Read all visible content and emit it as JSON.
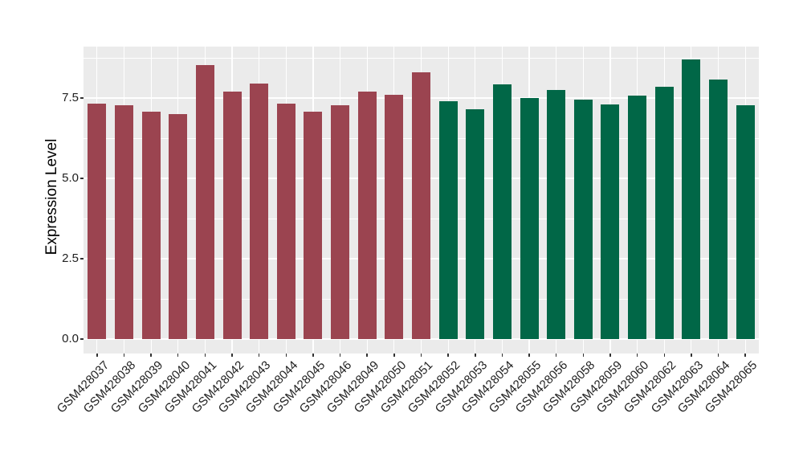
{
  "figure": {
    "background": "#FFFFFF",
    "panel_background": "#EBEBEB",
    "gridline_color": "#FFFFFF",
    "axis_text_color": "#212121",
    "tick_mark_color": "#333333"
  },
  "chart_data": {
    "type": "bar",
    "title": "",
    "xlabel": "",
    "ylabel": "Expression Level",
    "ylim": [
      0,
      9.1
    ],
    "yticks": [
      0.0,
      2.5,
      5.0,
      7.5
    ],
    "ytick_labels": [
      "0.0",
      "2.5",
      "5.0",
      "7.5"
    ],
    "yticks_minor": [
      1.25,
      3.75,
      6.25,
      8.75
    ],
    "grid": true,
    "legend": false,
    "categories": [
      "GSM428037",
      "GSM428038",
      "GSM428039",
      "GSM428040",
      "GSM428041",
      "GSM428042",
      "GSM428043",
      "GSM428044",
      "GSM428045",
      "GSM428046",
      "GSM428049",
      "GSM428050",
      "GSM428051",
      "GSM428052",
      "GSM428053",
      "GSM428054",
      "GSM428055",
      "GSM428056",
      "GSM428058",
      "GSM428059",
      "GSM428060",
      "GSM428062",
      "GSM428063",
      "GSM428064",
      "GSM428065"
    ],
    "values": [
      7.32,
      7.27,
      7.08,
      7.0,
      8.52,
      7.7,
      7.94,
      7.32,
      7.08,
      7.27,
      7.7,
      7.6,
      8.3,
      7.4,
      7.15,
      7.92,
      7.5,
      7.76,
      7.45,
      7.3,
      7.57,
      7.86,
      8.7,
      8.07,
      7.28
    ],
    "bar_groups": [
      0,
      0,
      0,
      0,
      0,
      0,
      0,
      0,
      0,
      0,
      0,
      0,
      0,
      1,
      1,
      1,
      1,
      1,
      1,
      1,
      1,
      1,
      1,
      1,
      1
    ],
    "color_groups": [
      {
        "name": "left-group",
        "color": "#9B4450"
      },
      {
        "name": "right-group",
        "color": "#016747"
      }
    ]
  }
}
